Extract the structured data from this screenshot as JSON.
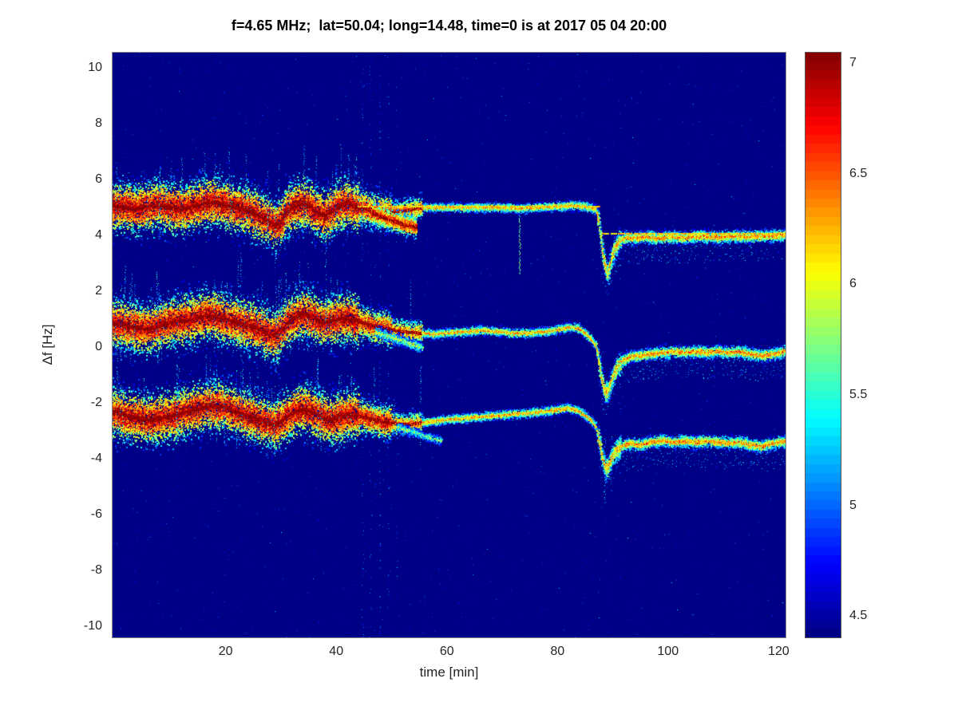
{
  "title": "f=4.65 MHz;  lat=50.04; long=14.48, time=0 is at 2017 05 04 20:00",
  "axes": {
    "x": {
      "label": "time [min]",
      "ticks": [
        20,
        40,
        60,
        80,
        100,
        120
      ]
    },
    "y": {
      "label": "Δf [Hz]",
      "ticks": [
        10,
        8,
        6,
        4,
        2,
        0,
        -2,
        -4,
        -6,
        -8,
        -10
      ]
    }
  },
  "colorbar": {
    "ticks": [
      4.5,
      5,
      5.5,
      6,
      6.5,
      7
    ]
  },
  "chart_data": {
    "type": "heatmap",
    "title": "f=4.65 MHz;  lat=50.04; long=14.48, time=0 is at 2017 05 04 20:00",
    "xlabel": "time [min]",
    "ylabel": "Δf [Hz]",
    "xlim": [
      -0.6,
      121.4
    ],
    "ylim": [
      -10.43,
      10.57
    ],
    "clim": [
      4.4,
      7.05
    ],
    "colormap": "jet",
    "background_value": 4.4,
    "grid": false,
    "legend": "none",
    "event_time_min": 87.5,
    "seed": 20170504,
    "traces": [
      {
        "name": "doppler-trace-upper",
        "points": [
          [
            -0.6,
            5.05
          ],
          [
            0,
            5.05
          ],
          [
            2,
            5.0
          ],
          [
            4,
            4.95
          ],
          [
            6,
            5.05
          ],
          [
            8,
            5.1
          ],
          [
            10,
            5.0
          ],
          [
            12,
            4.95
          ],
          [
            14,
            5.05
          ],
          [
            16,
            5.15
          ],
          [
            18,
            5.2
          ],
          [
            20,
            5.1
          ],
          [
            22,
            5.0
          ],
          [
            24,
            4.9
          ],
          [
            26,
            4.72
          ],
          [
            28,
            4.5
          ],
          [
            29,
            4.32
          ],
          [
            30,
            4.5
          ],
          [
            31,
            4.85
          ],
          [
            32,
            5.0
          ],
          [
            33,
            5.1
          ],
          [
            34,
            5.15
          ],
          [
            35,
            5.05
          ],
          [
            36,
            4.9
          ],
          [
            37,
            4.78
          ],
          [
            38,
            4.72
          ],
          [
            39,
            4.85
          ],
          [
            40,
            5.0
          ],
          [
            41,
            5.1
          ],
          [
            42,
            5.15
          ],
          [
            43,
            5.08
          ],
          [
            44,
            5.0
          ],
          [
            45,
            4.98
          ],
          [
            46,
            4.92
          ],
          [
            47,
            4.88
          ],
          [
            48,
            4.85
          ],
          [
            50,
            4.82
          ],
          [
            52,
            4.88
          ],
          [
            54,
            4.95
          ],
          [
            56,
            5.0
          ],
          [
            58,
            5.0
          ],
          [
            60,
            5.0
          ],
          [
            65,
            5.0
          ],
          [
            70,
            5.0
          ],
          [
            73,
            4.96
          ],
          [
            76,
            5.0
          ],
          [
            80,
            5.04
          ],
          [
            83,
            5.08
          ],
          [
            85,
            5.04
          ],
          [
            86,
            5.0
          ],
          [
            87,
            4.92
          ],
          [
            87.6,
            4.4
          ],
          [
            88.1,
            3.5
          ],
          [
            88.6,
            2.95
          ],
          [
            89.1,
            2.62
          ],
          [
            89.6,
            3.0
          ],
          [
            90.3,
            3.5
          ],
          [
            91.2,
            3.8
          ],
          [
            92.5,
            3.92
          ],
          [
            94,
            3.9
          ],
          [
            96,
            3.95
          ],
          [
            98,
            3.9
          ],
          [
            100,
            3.95
          ],
          [
            103,
            3.92
          ],
          [
            106,
            3.97
          ],
          [
            109,
            3.93
          ],
          [
            112,
            3.97
          ],
          [
            115,
            3.95
          ],
          [
            118,
            3.98
          ],
          [
            121.4,
            4.02
          ]
        ]
      },
      {
        "name": "doppler-trace-middle",
        "points": [
          [
            -0.6,
            0.85
          ],
          [
            0,
            0.85
          ],
          [
            2,
            0.8
          ],
          [
            4,
            0.7
          ],
          [
            6,
            0.65
          ],
          [
            8,
            0.75
          ],
          [
            10,
            0.9
          ],
          [
            12,
            0.95
          ],
          [
            14,
            1.0
          ],
          [
            16,
            1.1
          ],
          [
            17,
            1.15
          ],
          [
            18,
            1.1
          ],
          [
            20,
            1.0
          ],
          [
            22,
            0.9
          ],
          [
            24,
            0.8
          ],
          [
            26,
            0.65
          ],
          [
            28,
            0.48
          ],
          [
            29,
            0.42
          ],
          [
            30,
            0.6
          ],
          [
            31,
            0.85
          ],
          [
            32,
            1.0
          ],
          [
            33,
            1.1
          ],
          [
            34,
            1.2
          ],
          [
            35,
            1.15
          ],
          [
            36,
            1.05
          ],
          [
            37,
            0.95
          ],
          [
            38,
            0.9
          ],
          [
            39,
            0.95
          ],
          [
            40,
            1.0
          ],
          [
            41,
            1.05
          ],
          [
            42,
            1.05
          ],
          [
            43,
            1.0
          ],
          [
            44,
            0.92
          ],
          [
            45,
            0.85
          ],
          [
            46,
            0.8
          ],
          [
            47,
            0.75
          ],
          [
            48,
            0.7
          ],
          [
            50,
            0.62
          ],
          [
            52,
            0.56
          ],
          [
            54,
            0.52
          ],
          [
            56,
            0.5
          ],
          [
            58,
            0.46
          ],
          [
            60,
            0.5
          ],
          [
            63,
            0.55
          ],
          [
            66,
            0.6
          ],
          [
            69,
            0.56
          ],
          [
            72,
            0.5
          ],
          [
            75,
            0.5
          ],
          [
            78,
            0.56
          ],
          [
            80,
            0.62
          ],
          [
            82,
            0.72
          ],
          [
            84,
            0.66
          ],
          [
            85,
            0.5
          ],
          [
            86,
            0.3
          ],
          [
            87,
            0.05
          ],
          [
            87.6,
            -0.6
          ],
          [
            88.1,
            -1.2
          ],
          [
            88.7,
            -1.62
          ],
          [
            89.2,
            -1.55
          ],
          [
            89.9,
            -1.15
          ],
          [
            90.7,
            -0.75
          ],
          [
            91.7,
            -0.5
          ],
          [
            93,
            -0.35
          ],
          [
            95,
            -0.3
          ],
          [
            97,
            -0.25
          ],
          [
            99,
            -0.2
          ],
          [
            101,
            -0.15
          ],
          [
            103,
            -0.2
          ],
          [
            105,
            -0.15
          ],
          [
            107,
            -0.2
          ],
          [
            109,
            -0.15
          ],
          [
            111,
            -0.2
          ],
          [
            113,
            -0.16
          ],
          [
            115,
            -0.26
          ],
          [
            117,
            -0.3
          ],
          [
            119,
            -0.24
          ],
          [
            121.4,
            -0.15
          ]
        ]
      },
      {
        "name": "doppler-trace-lower",
        "points": [
          [
            -0.6,
            -2.35
          ],
          [
            0,
            -2.35
          ],
          [
            2,
            -2.45
          ],
          [
            4,
            -2.55
          ],
          [
            6,
            -2.6
          ],
          [
            8,
            -2.55
          ],
          [
            10,
            -2.45
          ],
          [
            12,
            -2.35
          ],
          [
            14,
            -2.25
          ],
          [
            16,
            -2.15
          ],
          [
            18,
            -2.1
          ],
          [
            20,
            -2.15
          ],
          [
            22,
            -2.3
          ],
          [
            24,
            -2.45
          ],
          [
            26,
            -2.6
          ],
          [
            28,
            -2.75
          ],
          [
            29,
            -2.8
          ],
          [
            30,
            -2.65
          ],
          [
            31,
            -2.5
          ],
          [
            32,
            -2.38
          ],
          [
            33,
            -2.28
          ],
          [
            34,
            -2.22
          ],
          [
            35,
            -2.26
          ],
          [
            36,
            -2.35
          ],
          [
            37,
            -2.45
          ],
          [
            38,
            -2.55
          ],
          [
            39,
            -2.6
          ],
          [
            40,
            -2.55
          ],
          [
            41,
            -2.48
          ],
          [
            42,
            -2.42
          ],
          [
            43,
            -2.4
          ],
          [
            44,
            -2.45
          ],
          [
            45,
            -2.5
          ],
          [
            46,
            -2.55
          ],
          [
            47,
            -2.6
          ],
          [
            48,
            -2.65
          ],
          [
            50,
            -2.7
          ],
          [
            52,
            -2.75
          ],
          [
            54,
            -2.75
          ],
          [
            56,
            -2.7
          ],
          [
            58,
            -2.65
          ],
          [
            60,
            -2.6
          ],
          [
            63,
            -2.55
          ],
          [
            66,
            -2.5
          ],
          [
            69,
            -2.45
          ],
          [
            72,
            -2.4
          ],
          [
            75,
            -2.35
          ],
          [
            78,
            -2.3
          ],
          [
            80,
            -2.24
          ],
          [
            82,
            -2.18
          ],
          [
            84,
            -2.3
          ],
          [
            85,
            -2.45
          ],
          [
            86,
            -2.6
          ],
          [
            87,
            -2.85
          ],
          [
            87.6,
            -3.4
          ],
          [
            88.1,
            -3.9
          ],
          [
            88.7,
            -4.35
          ],
          [
            89.2,
            -4.3
          ],
          [
            89.9,
            -3.95
          ],
          [
            90.7,
            -3.68
          ],
          [
            91.7,
            -3.55
          ],
          [
            93,
            -3.45
          ],
          [
            95,
            -3.5
          ],
          [
            97,
            -3.4
          ],
          [
            99,
            -3.35
          ],
          [
            101,
            -3.4
          ],
          [
            103,
            -3.36
          ],
          [
            105,
            -3.4
          ],
          [
            107,
            -3.36
          ],
          [
            109,
            -3.4
          ],
          [
            111,
            -3.44
          ],
          [
            113,
            -3.4
          ],
          [
            115,
            -3.5
          ],
          [
            117,
            -3.55
          ],
          [
            119,
            -3.45
          ],
          [
            121.4,
            -3.35
          ]
        ]
      }
    ],
    "branches": [
      {
        "name": "upper-split-branch",
        "points": [
          [
            46.5,
            4.8
          ],
          [
            48.5,
            4.65
          ],
          [
            50.5,
            4.5
          ],
          [
            52.5,
            4.38
          ],
          [
            54.5,
            4.3
          ]
        ],
        "spread": 0.16,
        "core": 6.95,
        "density": 0.8,
        "center": "solid"
      },
      {
        "name": "middle-split-branch",
        "points": [
          [
            47,
            0.55
          ],
          [
            50,
            0.35
          ],
          [
            53,
            0.15
          ],
          [
            55.5,
            0.0
          ]
        ],
        "spread": 0.12,
        "core": 5.9,
        "density": 0.4,
        "center": "none"
      },
      {
        "name": "lower-split-branch",
        "points": [
          [
            51,
            -2.85
          ],
          [
            54,
            -3.05
          ],
          [
            57,
            -3.25
          ],
          [
            59,
            -3.35
          ]
        ],
        "spread": 0.1,
        "core": 5.7,
        "density": 0.35,
        "center": "none"
      }
    ],
    "hlines": [
      {
        "y": 5.05,
        "t0": 44,
        "t1": 87.6,
        "value": 6.15
      },
      {
        "y": 4.08,
        "t0": 88.0,
        "t1": 121.4,
        "value": 6.2
      }
    ],
    "streaks": [
      {
        "t": 44.8,
        "y0": -10.4,
        "y1": 10.5,
        "value": 4.95,
        "density": 0.1
      },
      {
        "t": 46.2,
        "y0": -10.4,
        "y1": 10.5,
        "value": 4.9,
        "density": 0.08
      },
      {
        "t": 47.9,
        "y0": -10.4,
        "y1": 10.5,
        "value": 5.0,
        "density": 0.12
      },
      {
        "t": 49.4,
        "y0": -10.4,
        "y1": 10.5,
        "value": 4.9,
        "density": 0.08
      },
      {
        "t": 50.9,
        "y0": -10.4,
        "y1": 10.5,
        "value": 4.85,
        "density": 0.06
      },
      {
        "t": 73.2,
        "y0": 2.6,
        "y1": 4.95,
        "value": 5.7,
        "density": 0.85
      },
      {
        "t": 88.6,
        "y0": -5.6,
        "y1": -2.9,
        "value": 5.2,
        "density": 0.3
      },
      {
        "t": 89.8,
        "y0": -5.2,
        "y1": -3.2,
        "value": 5.1,
        "density": 0.25
      }
    ],
    "noise_phases": [
      {
        "t0": -0.6,
        "t1": 44,
        "spread": 0.38,
        "core": 7.08,
        "density": 1.0,
        "center": "solid",
        "spike_rate": 0.9
      },
      {
        "t0": 44,
        "t1": 50,
        "spread": 0.26,
        "core": 6.95,
        "density": 0.85,
        "center": "solid",
        "spike_rate": 0.35
      },
      {
        "t0": 50,
        "t1": 55.5,
        "spread": 0.2,
        "core": 6.6,
        "density": 0.6,
        "center": "solid",
        "spike_rate": 0.15
      },
      {
        "t0": 55.5,
        "t1": 87.3,
        "spread": 0.085,
        "core": 6.3,
        "density": 0.4,
        "center": "dash",
        "center_value": 6.25,
        "spike_rate": 0
      },
      {
        "t0": 87.3,
        "t1": 91.5,
        "spread": 0.2,
        "core": 6.35,
        "density": 0.75,
        "center": "dash",
        "center_value": 5.8,
        "spike_rate": 0,
        "underfuzz": true
      },
      {
        "t0": 91.5,
        "t1": 121.4,
        "spread": 0.11,
        "core": 6.4,
        "density": 0.45,
        "center": "dash",
        "center_value": 6.3,
        "spike_rate": 0,
        "underfuzz": true
      }
    ]
  }
}
